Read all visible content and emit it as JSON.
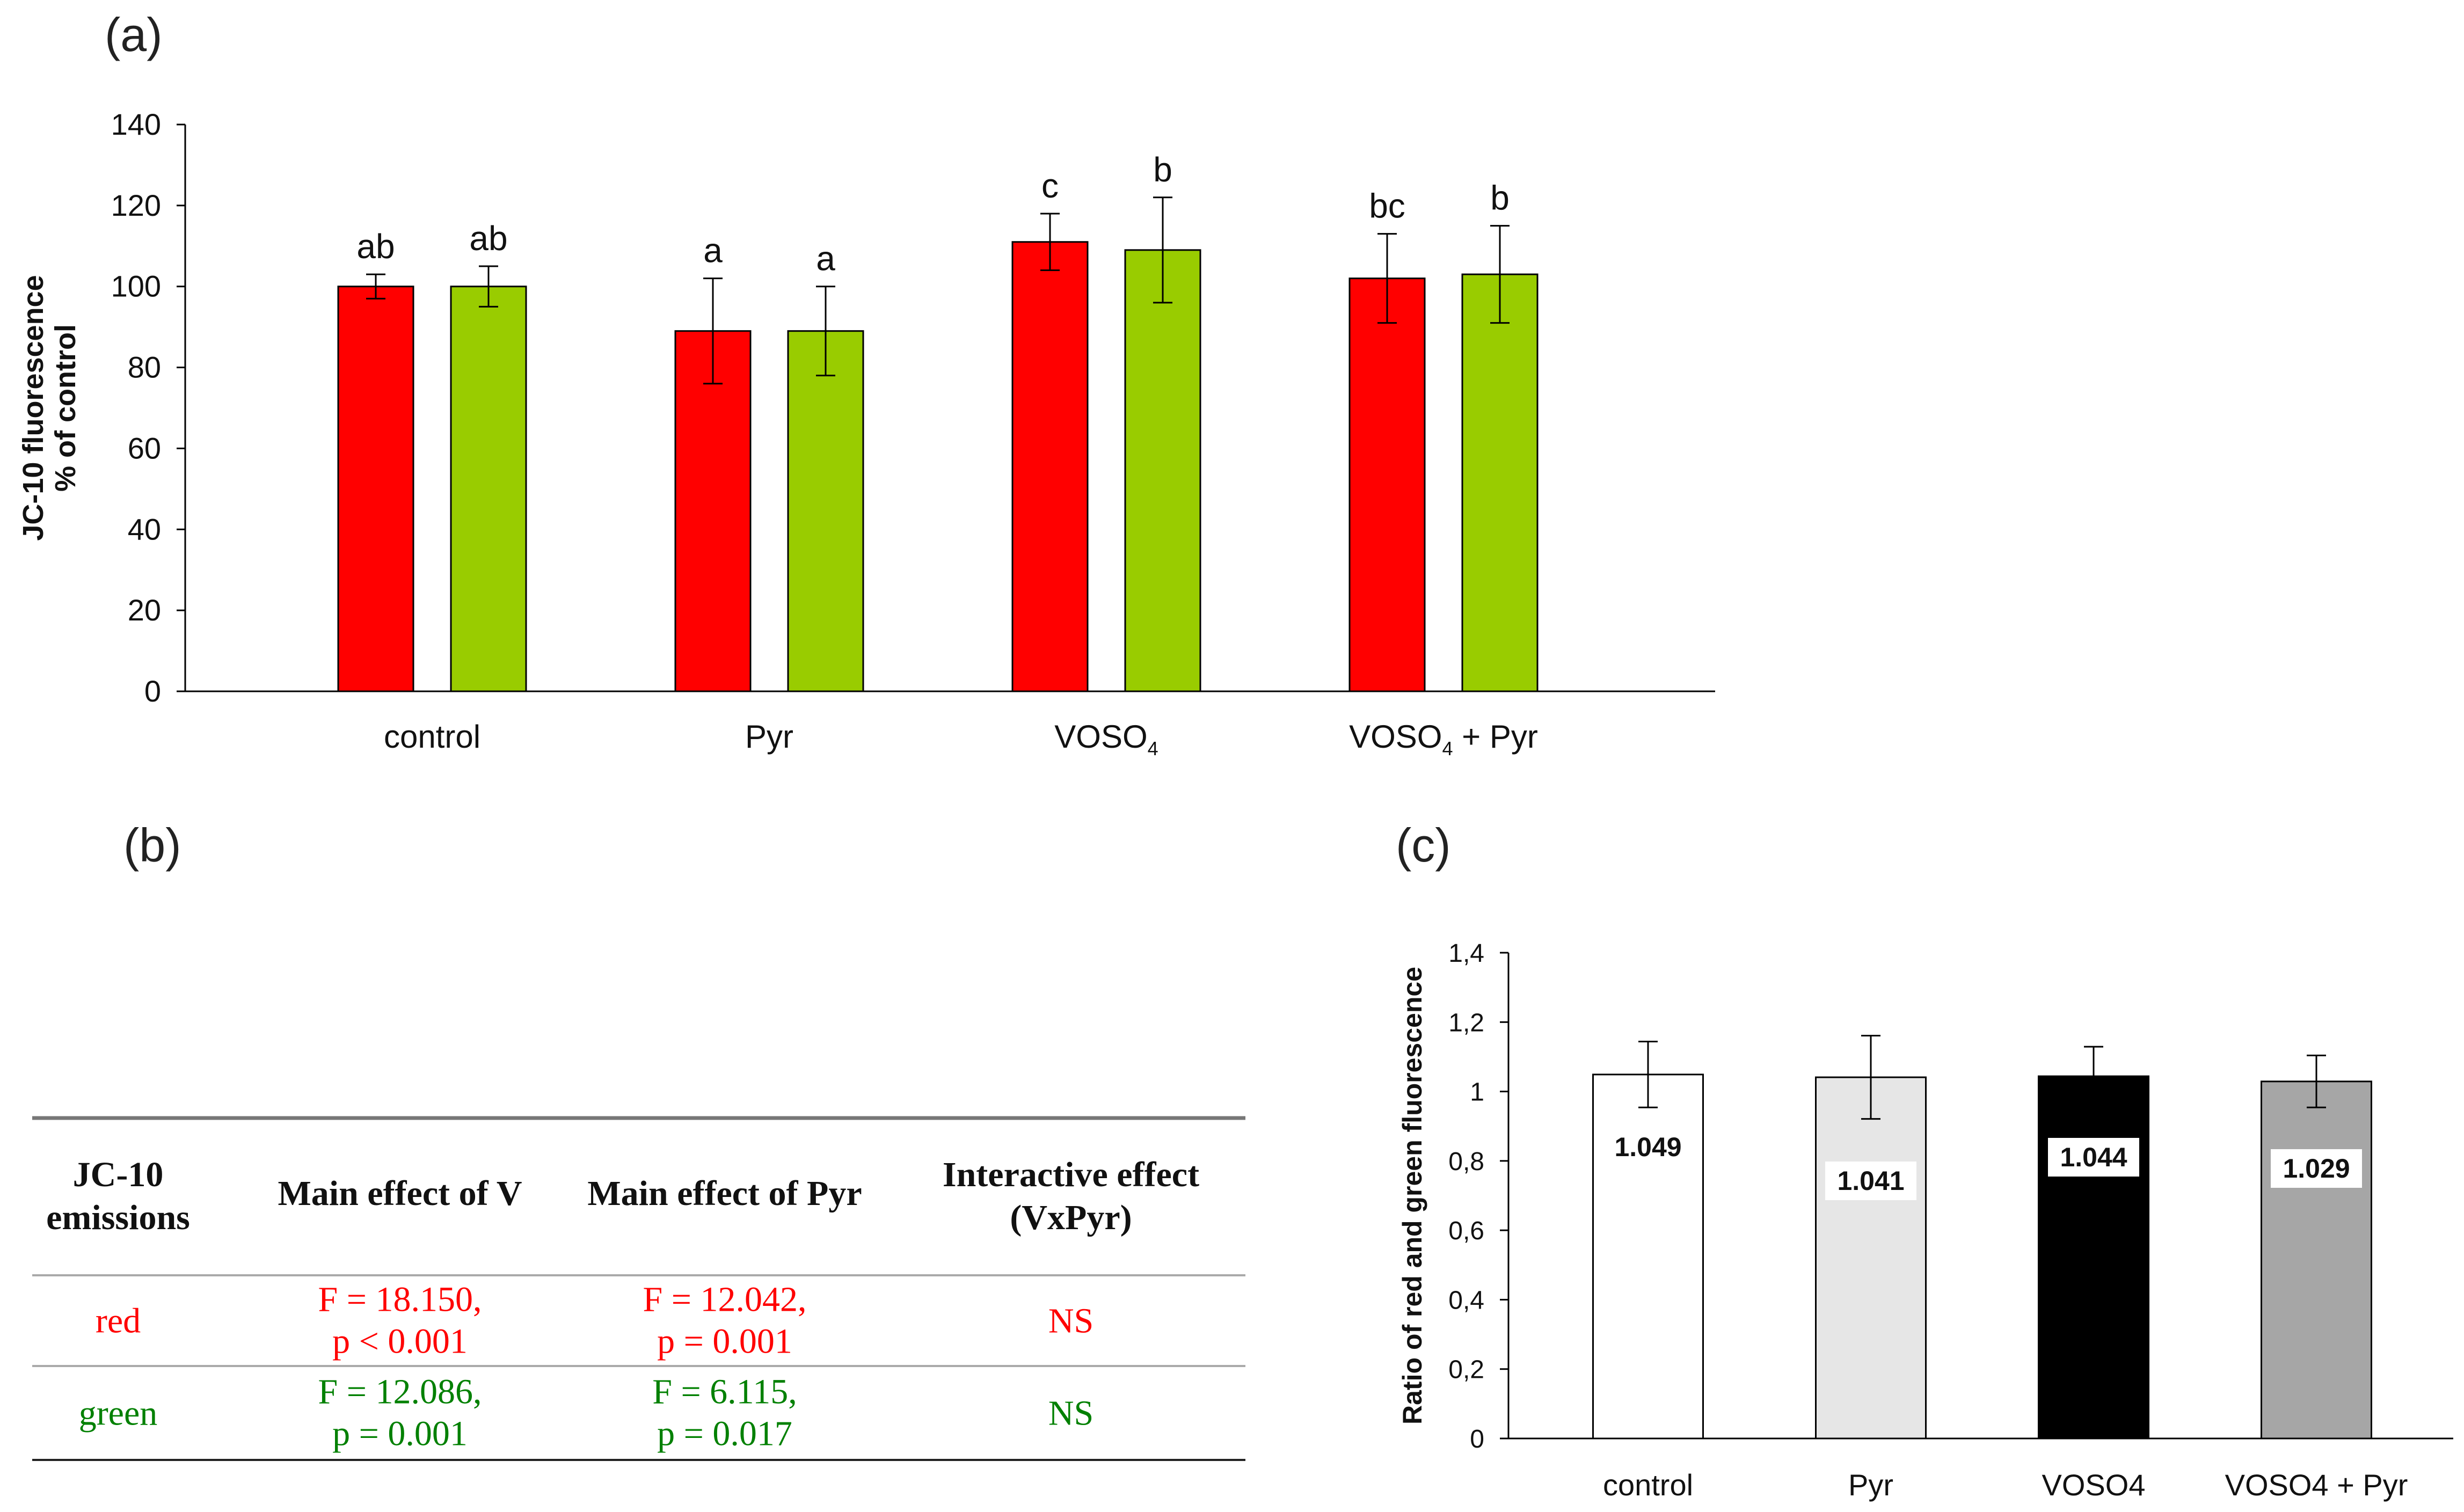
{
  "chart_data": [
    {
      "panel": "(a)",
      "type": "bar",
      "ylabel_lines": [
        "JC-10 fluorescence",
        "% of control"
      ],
      "ylim": [
        0,
        140
      ],
      "yticks": [
        0,
        20,
        40,
        60,
        80,
        100,
        120,
        140
      ],
      "categories": [
        {
          "main": "control",
          "sub": "",
          "tail": ""
        },
        {
          "main": "Pyr",
          "sub": "",
          "tail": ""
        },
        {
          "main": "VOSO",
          "sub": "4",
          "tail": ""
        },
        {
          "main": "VOSO",
          "sub": "4",
          "tail": " + Pyr"
        }
      ],
      "series": [
        {
          "name": "red",
          "color": "#ff0000",
          "values": [
            100,
            89,
            111,
            102
          ],
          "errors": [
            3,
            13,
            7,
            11
          ],
          "letters": [
            "ab",
            "a",
            "c",
            "bc"
          ]
        },
        {
          "name": "green",
          "color": "#99cc00",
          "values": [
            100,
            89,
            109,
            103
          ],
          "errors": [
            5,
            11,
            13,
            12
          ],
          "letters": [
            "ab",
            "a",
            "b",
            "b"
          ]
        }
      ]
    },
    {
      "panel": "(c)",
      "type": "bar",
      "ylabel": "Ratio of red and green fluorescence",
      "ylim": [
        0,
        1.4
      ],
      "yticks": [
        "0",
        "0,2",
        "0,4",
        "0,6",
        "0,8",
        "1",
        "1,2",
        "1,4"
      ],
      "categories": [
        "control",
        "Pyr",
        "VOSO4",
        "VOSO4 + Pyr"
      ],
      "values": [
        1.049,
        1.041,
        1.044,
        1.029
      ],
      "errors": [
        0.095,
        0.12,
        0.085,
        0.075
      ],
      "labels": [
        "1.049",
        "1.041",
        "1.044",
        "1.029"
      ],
      "colors": [
        "#ffffff",
        "#e6e6e6",
        "#000000",
        "#a6a6a6"
      ]
    }
  ],
  "panel_b": {
    "label": "(b)",
    "headers": [
      [
        "JC-10",
        "emissions"
      ],
      [
        "Main effect of V"
      ],
      [
        "Main effect of Pyr"
      ],
      [
        "Interactive  effect",
        "(VxPyr)"
      ]
    ],
    "rows": [
      {
        "color": "#ff0000",
        "cells": [
          [
            "red"
          ],
          [
            "F = 18.150,",
            "p < 0.001"
          ],
          [
            "F = 12.042,",
            "p = 0.001"
          ],
          [
            "NS"
          ]
        ]
      },
      {
        "color": "#008000",
        "cells": [
          [
            "green"
          ],
          [
            "F = 12.086,",
            "p = 0.001"
          ],
          [
            "F = 6.115,",
            "p = 0.017"
          ],
          [
            "NS"
          ]
        ]
      }
    ]
  }
}
